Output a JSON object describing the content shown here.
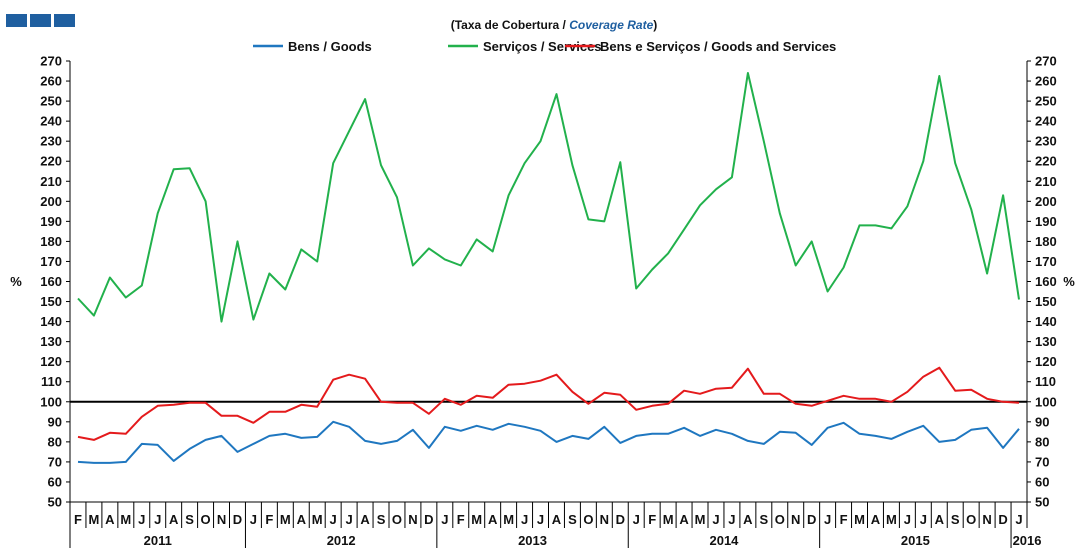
{
  "logo": {
    "name": "brand-logo",
    "color": "#1f5fa0"
  },
  "chart_data": {
    "type": "line",
    "title_prefix": "(Taxa  de Cobertura  /",
    "title_em": "Coverage Rate",
    "title_suffix": ")",
    "ylabel_left": "%",
    "ylabel_right": "%",
    "ylim": [
      50,
      270
    ],
    "ytick_step": 10,
    "reference_line": {
      "value": 100,
      "color": "#000000"
    },
    "legend_position": "top-center",
    "x_month_labels": [
      "F",
      "M",
      "A",
      "M",
      "J",
      "J",
      "A",
      "S",
      "O",
      "N",
      "D",
      "J",
      "F",
      "M",
      "A",
      "M",
      "J",
      "J",
      "A",
      "S",
      "O",
      "N",
      "D",
      "J",
      "F",
      "M",
      "A",
      "M",
      "J",
      "J",
      "A",
      "S",
      "O",
      "N",
      "D",
      "J",
      "F",
      "M",
      "A",
      "M",
      "J",
      "J",
      "A",
      "S",
      "O",
      "N",
      "D",
      "J",
      "F",
      "M",
      "A",
      "M",
      "J",
      "J",
      "A",
      "S",
      "O",
      "N",
      "D",
      "J"
    ],
    "year_labels": [
      {
        "label": "2011",
        "start": 0,
        "end": 10
      },
      {
        "label": "2012",
        "start": 11,
        "end": 22
      },
      {
        "label": "2013",
        "start": 23,
        "end": 34
      },
      {
        "label": "2014",
        "start": 35,
        "end": 46
      },
      {
        "label": "2015",
        "start": 47,
        "end": 58
      },
      {
        "label": "2016",
        "start": 59,
        "end": 59
      }
    ],
    "series": [
      {
        "name": "Bens / Goods",
        "color": "#1f77c0",
        "values": [
          70,
          69.5,
          69.5,
          70,
          79,
          78.5,
          70.5,
          76.5,
          81,
          83,
          75,
          79,
          83,
          84,
          82,
          82.5,
          90,
          87.5,
          80.5,
          79,
          80.5,
          86,
          77,
          87.5,
          85.5,
          88,
          86,
          89,
          87.5,
          85.5,
          80,
          83,
          81.5,
          87.5,
          79.5,
          83,
          84,
          84,
          87,
          83,
          86,
          84,
          80.5,
          79,
          85,
          84.5,
          78.5,
          87,
          89.5,
          84,
          83,
          81.5,
          85,
          88,
          80,
          81,
          86,
          87,
          77,
          86.5
        ]
      },
      {
        "name": "Serviços / Services",
        "color": "#22b14c",
        "values": [
          151.5,
          143,
          162,
          152,
          158,
          194,
          216,
          216.5,
          200,
          140,
          180,
          141,
          164,
          156,
          176,
          170,
          219,
          235,
          251,
          218,
          202,
          168,
          176.5,
          171,
          168,
          181,
          175,
          203,
          219,
          230,
          253.5,
          218,
          191,
          190,
          219.5,
          156.5,
          166,
          174,
          186,
          198,
          206,
          212,
          264,
          230,
          194,
          168,
          180,
          155,
          167,
          188,
          188,
          186.5,
          197.5,
          220,
          262.5,
          219,
          196,
          164,
          203,
          151
        ]
      },
      {
        "name": "Bens e Serviços / Goods and Services",
        "color": "#e41a1c",
        "values": [
          82.5,
          81,
          84.5,
          84,
          92.5,
          98,
          98.5,
          99.5,
          99.5,
          93,
          93,
          89.5,
          95,
          95,
          98.5,
          97.5,
          111,
          113.5,
          111.5,
          100,
          99.5,
          99.5,
          94,
          101.5,
          98.5,
          103,
          102,
          108.5,
          109,
          110.5,
          113.5,
          105,
          99,
          104.5,
          103.5,
          96,
          98,
          99,
          105.5,
          104,
          106.5,
          107,
          116.5,
          104,
          104,
          99,
          98,
          100.5,
          103,
          101.5,
          101.5,
          100,
          105,
          112.5,
          117,
          105.5,
          106,
          101.5,
          100,
          99.5
        ]
      }
    ]
  }
}
